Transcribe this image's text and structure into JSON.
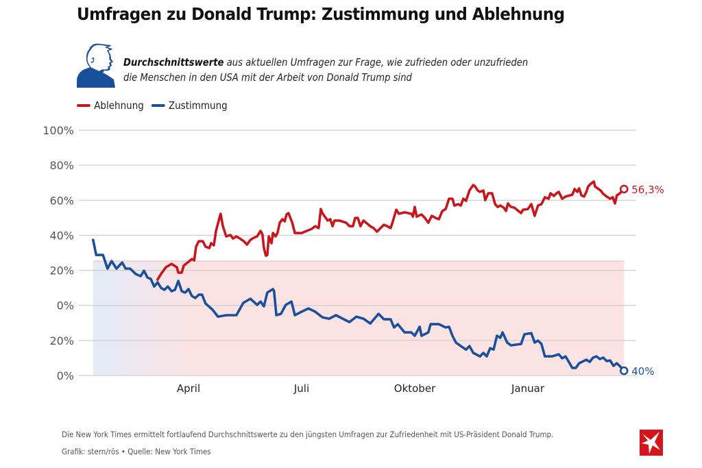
{
  "header": {
    "title": "Umfragen zu Donald Trump: Zustimmung und Ablehnung",
    "subtitle_bold": "Durchschnittswerte",
    "subtitle_line1": " aus aktuellen Umfragen zur Frage, wie zufrieden oder unzufrieden",
    "subtitle_line2": "die Menschen in den USA mit der Arbeit von Donald Trump sind",
    "icon": "trump-profile-icon"
  },
  "legend": [
    {
      "label": "Ablehnung",
      "color": "#c8161d"
    },
    {
      "label": "Zustimmung",
      "color": "#1a4f9c"
    }
  ],
  "footer": {
    "note": "Die New York Times ermittelt fortlaufend Durchschnittswerte zu den jüngsten Umfragen zur Zufriedenheit mit US-Präsident Donald Trump.",
    "credit": "Grafik: stern/rös • Quelle: New York Times",
    "logo": "stern-logo-icon"
  },
  "colors": {
    "red": "#c8161d",
    "blue": "#1a4f9c",
    "pink_fill": "#fbe3e4",
    "blue_fill": "#e8eef7",
    "grid": "#cfcfcf",
    "logo_red": "#d7141a"
  },
  "chart_data": {
    "type": "line",
    "title": "Umfragen zu Donald Trump: Zustimmung und Ablehnung",
    "xlabel": "",
    "ylabel": "",
    "x_unit": "months since 1 January (first year)",
    "xlim": [
      0,
      15.5
    ],
    "x_ticks": [
      {
        "value": 3,
        "label": "April"
      },
      {
        "value": 6,
        "label": "Juli"
      },
      {
        "value": 9,
        "label": "Oktober"
      },
      {
        "value": 12,
        "label": "Januar"
      }
    ],
    "ylim": [
      -40,
      100
    ],
    "y_ticks": [
      {
        "value": 100,
        "label": "100%"
      },
      {
        "value": 80,
        "label": "80%"
      },
      {
        "value": 60,
        "label": "60%"
      },
      {
        "value": 40,
        "label": "40%"
      },
      {
        "value": 20,
        "label": "20%"
      },
      {
        "value": 0,
        "label": "0%"
      },
      {
        "value": -20,
        "label": "20%"
      },
      {
        "value": -40,
        "label": "0%"
      }
    ],
    "grid": true,
    "legend_position": "top-left",
    "shaded_band": {
      "from_x": 0.47,
      "to_x": 14.55,
      "y_top": 25.3,
      "y_bottom": -40
    },
    "series": [
      {
        "name": "Ablehnung",
        "color": "#c8161d",
        "end_label": "56,3%",
        "points": [
          [
            2.18,
            14.7
          ],
          [
            2.27,
            17.9
          ],
          [
            2.4,
            21.8
          ],
          [
            2.55,
            23.7
          ],
          [
            2.69,
            21.8
          ],
          [
            2.73,
            18.7
          ],
          [
            2.82,
            18.7
          ],
          [
            2.87,
            22.6
          ],
          [
            3.0,
            24.9
          ],
          [
            3.09,
            26.5
          ],
          [
            3.15,
            25.7
          ],
          [
            3.2,
            33.5
          ],
          [
            3.27,
            36.6
          ],
          [
            3.38,
            36.6
          ],
          [
            3.45,
            33.5
          ],
          [
            3.55,
            32.7
          ],
          [
            3.6,
            35.5
          ],
          [
            3.67,
            34.3
          ],
          [
            3.73,
            42.5
          ],
          [
            3.82,
            49.9
          ],
          [
            3.85,
            52.3
          ],
          [
            3.91,
            45.2
          ],
          [
            4.0,
            39.4
          ],
          [
            4.11,
            40.2
          ],
          [
            4.18,
            38.2
          ],
          [
            4.27,
            39.4
          ],
          [
            4.36,
            38.2
          ],
          [
            4.47,
            36.6
          ],
          [
            4.55,
            34.7
          ],
          [
            4.64,
            37.4
          ],
          [
            4.73,
            38.6
          ],
          [
            4.82,
            39.4
          ],
          [
            4.91,
            42.5
          ],
          [
            4.96,
            40.6
          ],
          [
            5.0,
            32.7
          ],
          [
            5.05,
            28.4
          ],
          [
            5.09,
            28.8
          ],
          [
            5.13,
            39.4
          ],
          [
            5.2,
            35.5
          ],
          [
            5.24,
            41.3
          ],
          [
            5.31,
            39.4
          ],
          [
            5.36,
            41.3
          ],
          [
            5.42,
            47.2
          ],
          [
            5.49,
            49.2
          ],
          [
            5.55,
            48.0
          ],
          [
            5.6,
            51.9
          ],
          [
            5.65,
            52.7
          ],
          [
            5.75,
            47.2
          ],
          [
            5.82,
            41.3
          ],
          [
            6.0,
            41.3
          ],
          [
            6.18,
            42.9
          ],
          [
            6.27,
            43.7
          ],
          [
            6.36,
            45.2
          ],
          [
            6.45,
            44.1
          ],
          [
            6.51,
            55.0
          ],
          [
            6.56,
            52.3
          ],
          [
            6.64,
            49.9
          ],
          [
            6.69,
            48.4
          ],
          [
            6.76,
            49.2
          ],
          [
            6.82,
            45.2
          ],
          [
            6.87,
            48.4
          ],
          [
            7.0,
            48.4
          ],
          [
            7.18,
            47.2
          ],
          [
            7.27,
            45.2
          ],
          [
            7.36,
            45.2
          ],
          [
            7.42,
            49.9
          ],
          [
            7.49,
            49.9
          ],
          [
            7.56,
            45.2
          ],
          [
            7.64,
            48.4
          ],
          [
            7.82,
            45.2
          ],
          [
            7.91,
            44.1
          ],
          [
            8.0,
            42.1
          ],
          [
            8.09,
            44.1
          ],
          [
            8.18,
            46.0
          ],
          [
            8.27,
            45.2
          ],
          [
            8.36,
            44.1
          ],
          [
            8.42,
            48.0
          ],
          [
            8.51,
            54.6
          ],
          [
            8.58,
            52.3
          ],
          [
            8.73,
            53.1
          ],
          [
            8.91,
            52.3
          ],
          [
            8.95,
            50.7
          ],
          [
            9.0,
            56.2
          ],
          [
            9.05,
            50.7
          ],
          [
            9.18,
            51.9
          ],
          [
            9.27,
            49.9
          ],
          [
            9.36,
            47.2
          ],
          [
            9.45,
            51.1
          ],
          [
            9.55,
            49.9
          ],
          [
            9.64,
            49.2
          ],
          [
            9.73,
            53.9
          ],
          [
            9.82,
            55.0
          ],
          [
            9.91,
            60.9
          ],
          [
            10.0,
            60.9
          ],
          [
            10.05,
            57.0
          ],
          [
            10.15,
            57.8
          ],
          [
            10.22,
            57.0
          ],
          [
            10.29,
            60.9
          ],
          [
            10.36,
            59.7
          ],
          [
            10.45,
            65.6
          ],
          [
            10.55,
            68.7
          ],
          [
            10.6,
            67.9
          ],
          [
            10.67,
            65.6
          ],
          [
            10.73,
            64.8
          ],
          [
            10.82,
            65.6
          ],
          [
            10.87,
            60.1
          ],
          [
            10.95,
            64.0
          ],
          [
            11.05,
            64.0
          ],
          [
            11.13,
            57.8
          ],
          [
            11.2,
            56.2
          ],
          [
            11.27,
            57.0
          ],
          [
            11.36,
            55.8
          ],
          [
            11.42,
            53.9
          ],
          [
            11.47,
            58.2
          ],
          [
            11.55,
            56.2
          ],
          [
            11.64,
            55.8
          ],
          [
            11.73,
            54.2
          ],
          [
            11.82,
            52.7
          ],
          [
            11.87,
            54.6
          ],
          [
            12.0,
            55.0
          ],
          [
            12.09,
            57.8
          ],
          [
            12.18,
            51.1
          ],
          [
            12.27,
            57.0
          ],
          [
            12.36,
            57.8
          ],
          [
            12.45,
            61.7
          ],
          [
            12.55,
            60.9
          ],
          [
            12.6,
            64.0
          ],
          [
            12.69,
            62.5
          ],
          [
            12.76,
            64.0
          ],
          [
            12.82,
            64.8
          ],
          [
            12.91,
            60.9
          ],
          [
            13.0,
            62.1
          ],
          [
            13.18,
            63.2
          ],
          [
            13.24,
            66.4
          ],
          [
            13.31,
            64.8
          ],
          [
            13.36,
            66.8
          ],
          [
            13.42,
            62.8
          ],
          [
            13.49,
            62.1
          ],
          [
            13.55,
            64.8
          ],
          [
            13.6,
            67.9
          ],
          [
            13.67,
            69.5
          ],
          [
            13.75,
            70.7
          ],
          [
            13.78,
            67.9
          ],
          [
            13.85,
            66.8
          ],
          [
            13.93,
            65.6
          ],
          [
            14.0,
            63.6
          ],
          [
            14.09,
            62.1
          ],
          [
            14.18,
            60.9
          ],
          [
            14.25,
            61.7
          ],
          [
            14.31,
            58.2
          ],
          [
            14.36,
            62.8
          ],
          [
            14.44,
            64.0
          ],
          [
            14.55,
            66.4
          ]
        ]
      },
      {
        "name": "Zustimmung",
        "color": "#1a4f9c",
        "end_label": "40%",
        "points": [
          [
            0.47,
            37.4
          ],
          [
            0.55,
            28.8
          ],
          [
            0.73,
            28.8
          ],
          [
            0.85,
            21.0
          ],
          [
            0.96,
            25.3
          ],
          [
            1.09,
            21.0
          ],
          [
            1.24,
            24.5
          ],
          [
            1.33,
            21.0
          ],
          [
            1.45,
            21.0
          ],
          [
            1.6,
            17.9
          ],
          [
            1.73,
            16.7
          ],
          [
            1.82,
            19.8
          ],
          [
            1.91,
            15.9
          ],
          [
            2.0,
            15.1
          ],
          [
            2.09,
            10.8
          ],
          [
            2.18,
            13.2
          ],
          [
            2.27,
            10.0
          ],
          [
            2.36,
            8.9
          ],
          [
            2.45,
            10.8
          ],
          [
            2.55,
            8.1
          ],
          [
            2.64,
            8.9
          ],
          [
            2.73,
            14.0
          ],
          [
            2.82,
            8.1
          ],
          [
            2.91,
            7.3
          ],
          [
            3.0,
            9.3
          ],
          [
            3.09,
            5.4
          ],
          [
            3.18,
            4.2
          ],
          [
            3.27,
            6.1
          ],
          [
            3.36,
            6.1
          ],
          [
            3.45,
            1.1
          ],
          [
            3.64,
            -2.5
          ],
          [
            3.78,
            -6.4
          ],
          [
            4.0,
            -5.6
          ],
          [
            4.27,
            -5.6
          ],
          [
            4.45,
            1.4
          ],
          [
            4.64,
            3.8
          ],
          [
            4.82,
            0.3
          ],
          [
            4.91,
            2.2
          ],
          [
            5.0,
            -0.5
          ],
          [
            5.09,
            7.3
          ],
          [
            5.24,
            9.3
          ],
          [
            5.27,
            8.1
          ],
          [
            5.33,
            -5.6
          ],
          [
            5.45,
            -4.8
          ],
          [
            5.58,
            0.3
          ],
          [
            5.73,
            2.2
          ],
          [
            5.82,
            -5.6
          ],
          [
            6.0,
            -3.6
          ],
          [
            6.18,
            -1.7
          ],
          [
            6.36,
            -3.6
          ],
          [
            6.55,
            -6.8
          ],
          [
            6.73,
            -7.6
          ],
          [
            6.91,
            -5.6
          ],
          [
            7.09,
            -7.6
          ],
          [
            7.27,
            -9.5
          ],
          [
            7.45,
            -6.4
          ],
          [
            7.64,
            -7.6
          ],
          [
            7.82,
            -10.3
          ],
          [
            8.04,
            -4.8
          ],
          [
            8.18,
            -7.9
          ],
          [
            8.36,
            -7.9
          ],
          [
            8.45,
            -12.6
          ],
          [
            8.55,
            -10.7
          ],
          [
            8.73,
            -15.4
          ],
          [
            8.91,
            -15.4
          ],
          [
            9.0,
            -17.3
          ],
          [
            9.13,
            -12.2
          ],
          [
            9.18,
            -17.3
          ],
          [
            9.36,
            -15.4
          ],
          [
            9.42,
            -10.7
          ],
          [
            9.64,
            -10.7
          ],
          [
            9.82,
            -12.6
          ],
          [
            9.91,
            -12.2
          ],
          [
            10.0,
            -17.3
          ],
          [
            10.09,
            -21.2
          ],
          [
            10.22,
            -23.2
          ],
          [
            10.36,
            -25.2
          ],
          [
            10.45,
            -23.2
          ],
          [
            10.55,
            -27.1
          ],
          [
            10.73,
            -29.1
          ],
          [
            10.82,
            -27.1
          ],
          [
            10.91,
            -29.1
          ],
          [
            11.0,
            -24.4
          ],
          [
            11.09,
            -25.2
          ],
          [
            11.18,
            -17.3
          ],
          [
            11.27,
            -18.5
          ],
          [
            11.33,
            -15.4
          ],
          [
            11.45,
            -21.2
          ],
          [
            11.55,
            -22.8
          ],
          [
            11.82,
            -22.0
          ],
          [
            11.91,
            -16.5
          ],
          [
            12.09,
            -15.8
          ],
          [
            12.18,
            -21.2
          ],
          [
            12.27,
            -20.1
          ],
          [
            12.36,
            -22.0
          ],
          [
            12.45,
            -29.1
          ],
          [
            12.64,
            -29.1
          ],
          [
            12.82,
            -27.9
          ],
          [
            12.91,
            -30.2
          ],
          [
            13.0,
            -29.1
          ],
          [
            13.18,
            -35.7
          ],
          [
            13.27,
            -35.7
          ],
          [
            13.36,
            -33.0
          ],
          [
            13.55,
            -31.0
          ],
          [
            13.64,
            -32.2
          ],
          [
            13.73,
            -29.8
          ],
          [
            13.82,
            -29.1
          ],
          [
            13.91,
            -30.6
          ],
          [
            14.0,
            -29.8
          ],
          [
            14.09,
            -31.8
          ],
          [
            14.18,
            -31.4
          ],
          [
            14.27,
            -34.5
          ],
          [
            14.36,
            -33.0
          ],
          [
            14.45,
            -34.9
          ],
          [
            14.55,
            -37.3
          ]
        ]
      }
    ]
  }
}
